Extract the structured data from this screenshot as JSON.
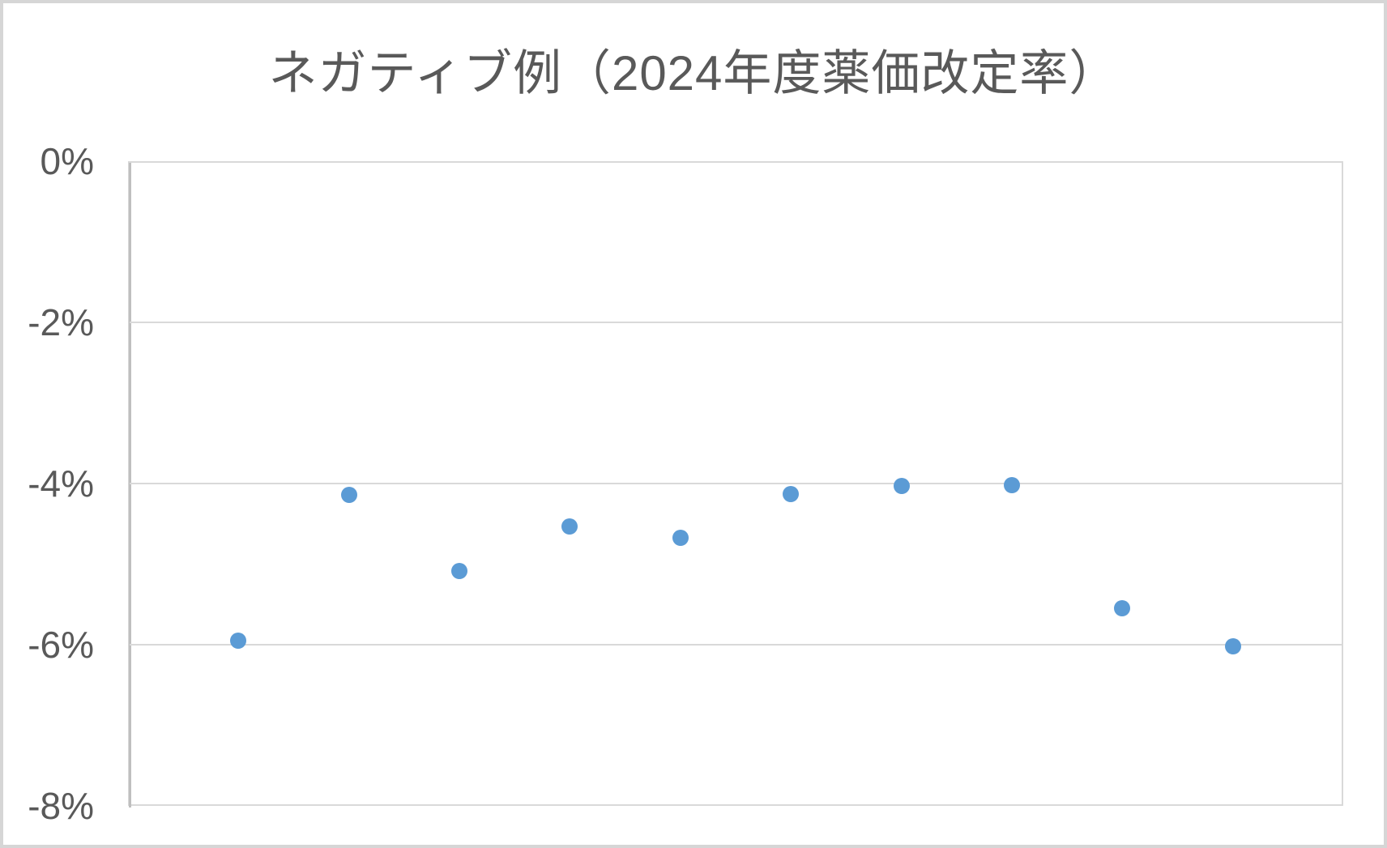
{
  "title": "ネガティブ例（2024年度薬価改定率）",
  "colors": {
    "marker": "#5b9bd5",
    "gridline": "#d9d9d9",
    "axis_line": "#bfbfbf",
    "text": "#595959",
    "outer_border": "#d6d6d6",
    "background": "#ffffff"
  },
  "chart_data": {
    "type": "scatter",
    "title": "ネガティブ例（2024年度薬価改定率）",
    "x": [
      1,
      2,
      3,
      4,
      5,
      6,
      7,
      8,
      9,
      10
    ],
    "values": [
      -5.95,
      -4.14,
      -5.09,
      -4.53,
      -4.67,
      -4.13,
      -4.03,
      -4.02,
      -5.55,
      -6.02
    ],
    "xlabel": "",
    "ylabel": "",
    "ylim": [
      -8,
      0
    ],
    "y_ticks": [
      {
        "value": 0,
        "label": "0%"
      },
      {
        "value": -2,
        "label": "-2%"
      },
      {
        "value": -4,
        "label": "-4%"
      },
      {
        "value": -6,
        "label": "-6%"
      },
      {
        "value": -8,
        "label": "-8%"
      }
    ],
    "x_tick_labels": [],
    "grid": "horizontal",
    "legend": "none",
    "marker": "circle"
  }
}
